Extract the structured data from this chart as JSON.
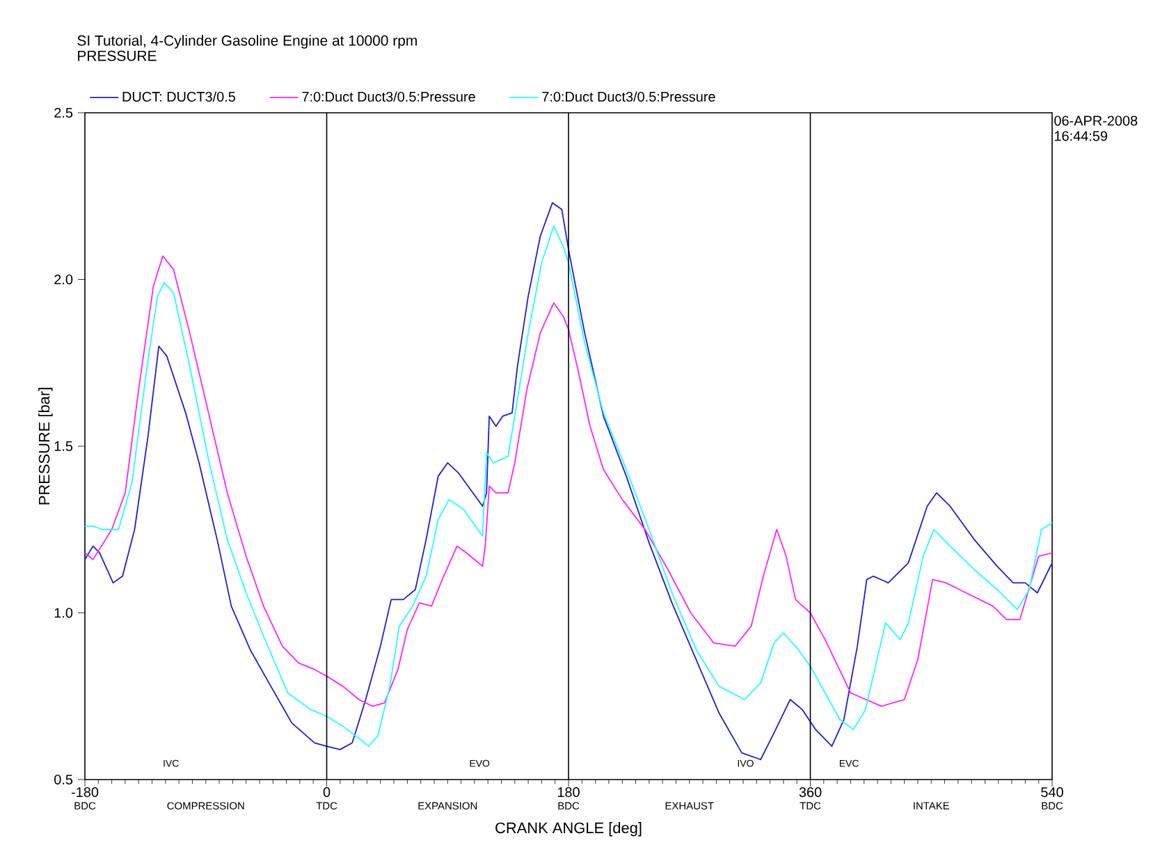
{
  "chart_data": {
    "type": "line",
    "title": "SI Tutorial, 4-Cylinder Gasoline Engine at 10000 rpm",
    "subtitle": "PRESSURE",
    "xlabel": "CRANK ANGLE  [deg]",
    "ylabel": "PRESSURE  [bar]",
    "xlim": [
      -180,
      540
    ],
    "ylim": [
      0.5,
      2.5
    ],
    "xticks": [
      -180,
      0,
      180,
      360,
      540
    ],
    "yticks": [
      {
        "value": 0.5,
        "label": "0.5"
      },
      {
        "value": 1.0,
        "label": "1.0"
      },
      {
        "value": 1.5,
        "label": "1.5"
      },
      {
        "value": 2.0,
        "label": "2.0"
      },
      {
        "value": 2.5,
        "label": "2.5"
      }
    ],
    "legend": "top",
    "grid": false,
    "marker": "none",
    "line_style": "solid",
    "ref_lines": [
      {
        "axis": "x",
        "value": 0,
        "color": "#000000"
      },
      {
        "axis": "x",
        "value": 180,
        "color": "#000000"
      },
      {
        "axis": "x",
        "value": 360,
        "color": "#000000"
      }
    ],
    "annotations": [
      "IVC",
      "EVO",
      "IVO",
      "EVC",
      "06-APR-2008",
      "16:44:59",
      "BDC",
      "COMPRESSION",
      "TDC",
      "EXPANSION",
      "BDC",
      "EXHAUST",
      "TDC",
      "INTAKE",
      "BDC"
    ],
    "series": [
      {
        "name": "DUCT: DUCT3/0.5",
        "color": "#1c1cdc",
        "x": [
          -180,
          -174,
          -169,
          -159,
          -152,
          -143,
          -133,
          -125,
          -119,
          -105,
          -95,
          -81,
          -71,
          -57,
          -43,
          -26,
          -9,
          0,
          10,
          19,
          29,
          40,
          48,
          57,
          66,
          74,
          83,
          90,
          98,
          116,
          119,
          121,
          126,
          131,
          138,
          142,
          150,
          159,
          168,
          175,
          180,
          192,
          206,
          223,
          240,
          257,
          275,
          292,
          309,
          323,
          333,
          345,
          354,
          364,
          376,
          385,
          395,
          402,
          407,
          418,
          433,
          447,
          454,
          464,
          482,
          499,
          511,
          520,
          529,
          540
        ],
        "values": [
          1.16,
          1.2,
          1.18,
          1.09,
          1.11,
          1.25,
          1.53,
          1.8,
          1.77,
          1.6,
          1.45,
          1.21,
          1.02,
          0.89,
          0.79,
          0.67,
          0.61,
          0.6,
          0.59,
          0.61,
          0.74,
          0.9,
          1.04,
          1.04,
          1.07,
          1.22,
          1.41,
          1.45,
          1.42,
          1.32,
          1.36,
          1.59,
          1.56,
          1.59,
          1.6,
          1.74,
          1.95,
          2.13,
          2.23,
          2.21,
          2.09,
          1.84,
          1.59,
          1.41,
          1.21,
          1.03,
          0.86,
          0.7,
          0.58,
          0.56,
          0.64,
          0.74,
          0.71,
          0.65,
          0.6,
          0.68,
          0.9,
          1.1,
          1.11,
          1.09,
          1.15,
          1.32,
          1.36,
          1.32,
          1.22,
          1.14,
          1.09,
          1.09,
          1.06,
          1.15
        ]
      },
      {
        "name": "7:0:Duct Duct3/0.5:Pressure",
        "color": "#ff22ff",
        "x": [
          -180,
          -174,
          -160,
          -150,
          -140,
          -129,
          -122,
          -114,
          -102,
          -88,
          -74,
          -60,
          -47,
          -33,
          -21,
          -9,
          0,
          12,
          24,
          34,
          43,
          53,
          60,
          69,
          78,
          86,
          97,
          104,
          116,
          118,
          121,
          126,
          135,
          140,
          149,
          159,
          169,
          176,
          180,
          187,
          196,
          206,
          220,
          237,
          254,
          271,
          288,
          304,
          316,
          325,
          335,
          342,
          349,
          360,
          371,
          390,
          413,
          430,
          440,
          451,
          461,
          471,
          496,
          506,
          516,
          530,
          540
        ],
        "values": [
          1.18,
          1.16,
          1.25,
          1.36,
          1.67,
          1.98,
          2.07,
          2.03,
          1.84,
          1.6,
          1.36,
          1.17,
          1.02,
          0.9,
          0.85,
          0.83,
          0.81,
          0.78,
          0.74,
          0.72,
          0.73,
          0.83,
          0.95,
          1.03,
          1.02,
          1.1,
          1.2,
          1.18,
          1.14,
          1.2,
          1.38,
          1.36,
          1.36,
          1.45,
          1.67,
          1.84,
          1.93,
          1.89,
          1.85,
          1.73,
          1.56,
          1.43,
          1.34,
          1.25,
          1.13,
          1.0,
          0.91,
          0.9,
          0.96,
          1.11,
          1.25,
          1.17,
          1.04,
          1.0,
          0.92,
          0.76,
          0.72,
          0.74,
          0.86,
          1.1,
          1.09,
          1.07,
          1.02,
          0.98,
          0.98,
          1.17,
          1.18
        ]
      },
      {
        "name": "7:0:Duct Duct3/0.5:Pressure",
        "color": "#22ffff",
        "x": [
          -180,
          -174,
          -167,
          -155,
          -145,
          -134,
          -126,
          -121,
          -114,
          -102,
          -88,
          -74,
          -60,
          -47,
          -29,
          -12,
          0,
          12,
          22,
          31,
          38,
          47,
          54,
          64,
          74,
          83,
          91,
          102,
          116,
          119,
          124,
          135,
          140,
          150,
          160,
          169,
          176,
          180,
          192,
          206,
          223,
          240,
          257,
          275,
          292,
          311,
          323,
          333,
          340,
          351,
          360,
          371,
          382,
          392,
          401,
          416,
          427,
          433,
          444,
          452,
          464,
          482,
          499,
          514,
          523,
          532,
          540
        ],
        "values": [
          1.26,
          1.26,
          1.25,
          1.25,
          1.39,
          1.73,
          1.95,
          1.99,
          1.96,
          1.74,
          1.46,
          1.22,
          1.06,
          0.93,
          0.76,
          0.71,
          0.69,
          0.66,
          0.63,
          0.6,
          0.63,
          0.78,
          0.96,
          1.02,
          1.11,
          1.28,
          1.34,
          1.31,
          1.23,
          1.48,
          1.45,
          1.47,
          1.59,
          1.84,
          2.05,
          2.16,
          2.1,
          2.05,
          1.81,
          1.6,
          1.43,
          1.25,
          1.06,
          0.89,
          0.78,
          0.74,
          0.79,
          0.91,
          0.94,
          0.89,
          0.84,
          0.76,
          0.68,
          0.65,
          0.71,
          0.97,
          0.92,
          0.97,
          1.17,
          1.25,
          1.2,
          1.13,
          1.07,
          1.01,
          1.07,
          1.25,
          1.27
        ]
      }
    ]
  }
}
